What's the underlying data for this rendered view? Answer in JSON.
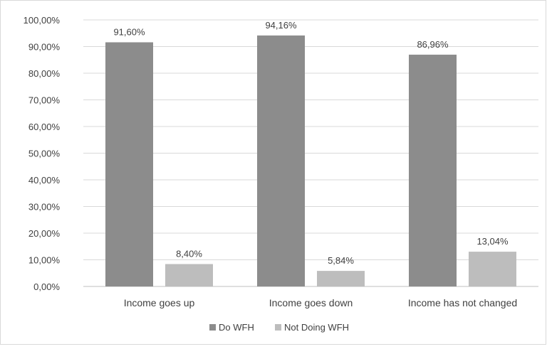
{
  "chart_data": {
    "type": "bar",
    "categories": [
      "Income goes up",
      "Income goes down",
      "Income has not changed"
    ],
    "series": [
      {
        "name": "Do WFH",
        "values": [
          91.6,
          94.16,
          86.96
        ],
        "labels": [
          "91,60%",
          "94,16%",
          "86,96%"
        ],
        "color": "#8c8c8c"
      },
      {
        "name": "Not Doing WFH",
        "values": [
          8.4,
          5.84,
          13.04
        ],
        "labels": [
          "8,40%",
          "5,84%",
          "13,04%"
        ],
        "color": "#bdbdbd"
      }
    ],
    "y_ticks": [
      0,
      10,
      20,
      30,
      40,
      50,
      60,
      70,
      80,
      90,
      100
    ],
    "y_tick_labels": [
      "0,00%",
      "10,00%",
      "20,00%",
      "30,00%",
      "40,00%",
      "50,00%",
      "60,00%",
      "70,00%",
      "80,00%",
      "90,00%",
      "100,00%"
    ],
    "ylim": [
      0,
      100
    ],
    "title": "",
    "xlabel": "",
    "ylabel": "",
    "grid": true,
    "legend_position": "bottom",
    "colors": {
      "grid": "#d9d9d9",
      "axis": "#bfbfbf",
      "text": "#404040",
      "border": "#d9d9d9"
    }
  }
}
